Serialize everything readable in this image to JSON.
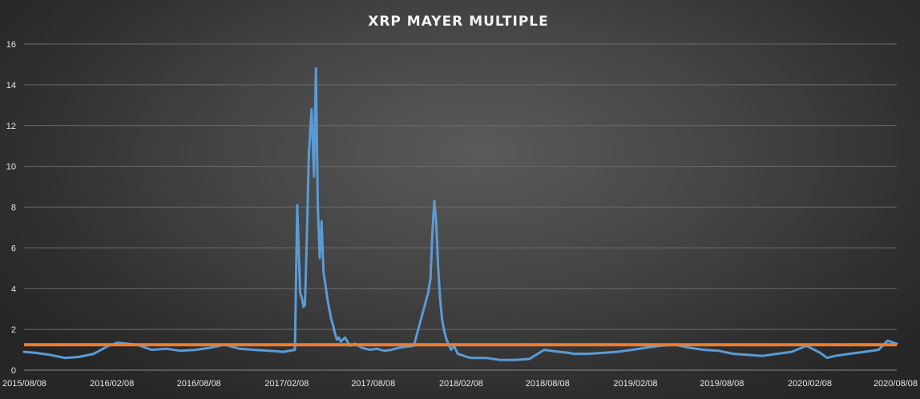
{
  "chart_data": {
    "type": "line",
    "title": "XRP MAYER MULTIPLE",
    "xlabel": "",
    "ylabel": "",
    "ylim": [
      0,
      16
    ],
    "yticks": [
      "0",
      "2",
      "4",
      "6",
      "8",
      "10",
      "12",
      "14",
      "16"
    ],
    "xlim": [
      "2015/08/08",
      "2020/08/08"
    ],
    "xticks": [
      "2015/08/08",
      "2016/02/08",
      "2016/08/08",
      "2017/02/08",
      "2017/08/08",
      "2018/02/08",
      "2018/08/08",
      "2019/02/08",
      "2019/08/08",
      "2020/02/08",
      "2020/08/08"
    ],
    "grid": true,
    "legend": "none",
    "colors": {
      "series": "#5b9bd5",
      "threshold": "#ed7d31"
    },
    "series": [
      {
        "x": [
          "2015/08/08",
          "2015/09/01",
          "2015/10/01",
          "2015/11/01",
          "2015/12/01",
          "2016/01/01",
          "2016/02/01",
          "2016/02/20",
          "2016/03/10",
          "2016/04/01",
          "2016/05/01",
          "2016/06/01",
          "2016/07/01",
          "2016/08/01",
          "2016/09/01",
          "2016/10/01",
          "2016/11/01",
          "2016/12/01",
          "2017/01/01",
          "2017/02/01",
          "2017/02/25",
          "2017/03/02",
          "2017/03/08",
          "2017/03/12",
          "2017/03/15",
          "2017/03/18",
          "2017/03/22",
          "2017/03/26",
          "2017/04/01",
          "2017/04/06",
          "2017/04/10",
          "2017/04/14",
          "2017/04/18",
          "2017/04/22",
          "2017/04/26",
          "2017/04/30",
          "2017/05/04",
          "2017/05/08",
          "2017/05/12",
          "2017/05/16",
          "2017/05/20",
          "2017/05/24",
          "2017/05/28",
          "2017/06/01",
          "2017/06/10",
          "2017/06/20",
          "2017/07/01",
          "2017/07/15",
          "2017/08/01",
          "2017/08/15",
          "2017/09/01",
          "2017/09/15",
          "2017/10/01",
          "2017/11/01",
          "2017/12/01",
          "2017/12/06",
          "2017/12/10",
          "2017/12/14",
          "2017/12/18",
          "2017/12/22",
          "2017/12/26",
          "2017/12/30",
          "2018/01/03",
          "2018/01/07",
          "2018/01/12",
          "2018/01/18",
          "2018/01/24",
          "2018/02/01",
          "2018/02/08",
          "2018/02/20",
          "2018/03/01",
          "2018/04/01",
          "2018/05/01",
          "2018/06/01",
          "2018/07/01",
          "2018/08/01",
          "2018/09/01",
          "2018/09/21",
          "2018/10/01",
          "2018/11/01",
          "2018/12/01",
          "2019/01/01",
          "2019/02/01",
          "2019/03/01",
          "2019/04/01",
          "2019/05/01",
          "2019/06/01",
          "2019/07/01",
          "2019/08/01",
          "2019/09/01",
          "2019/10/01",
          "2019/11/01",
          "2019/12/01",
          "2020/01/01",
          "2020/02/01",
          "2020/03/01",
          "2020/03/15",
          "2020/04/01",
          "2020/05/01",
          "2020/06/01",
          "2020/07/01",
          "2020/07/20",
          "2020/08/01",
          "2020/08/08"
        ],
        "y": [
          0.9,
          0.85,
          0.75,
          0.6,
          0.65,
          0.8,
          1.2,
          1.35,
          1.3,
          1.25,
          1.0,
          1.05,
          0.95,
          1.0,
          1.1,
          1.25,
          1.05,
          1.0,
          0.95,
          0.9,
          1.0,
          8.1,
          3.8,
          3.5,
          3.1,
          3.2,
          6.5,
          10.5,
          12.8,
          9.5,
          14.8,
          8.0,
          5.5,
          7.3,
          4.8,
          4.2,
          3.5,
          3.0,
          2.5,
          2.2,
          1.8,
          1.5,
          1.6,
          1.4,
          1.6,
          1.2,
          1.3,
          1.1,
          1.0,
          1.05,
          0.95,
          1.0,
          1.1,
          1.2,
          3.8,
          4.5,
          6.8,
          8.3,
          7.2,
          5.0,
          3.5,
          2.5,
          2.0,
          1.6,
          1.3,
          1.0,
          1.2,
          0.8,
          0.75,
          0.65,
          0.6,
          0.6,
          0.5,
          0.5,
          0.55,
          1.0,
          0.9,
          0.85,
          0.8,
          0.8,
          0.85,
          0.9,
          1.0,
          1.1,
          1.2,
          1.25,
          1.1,
          1.0,
          0.95,
          0.8,
          0.75,
          0.7,
          0.8,
          0.9,
          1.2,
          0.85,
          0.6,
          0.7,
          0.8,
          0.9,
          1.0,
          1.45,
          1.35,
          1.3
        ]
      },
      {
        "x": [
          "2015/08/08",
          "2020/08/08"
        ],
        "y": [
          1.25,
          1.25
        ]
      }
    ]
  }
}
